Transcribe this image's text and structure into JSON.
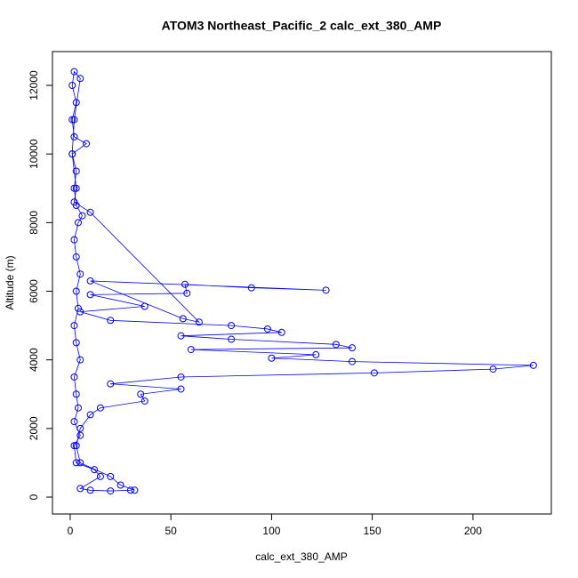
{
  "chart_data": {
    "type": "scatter",
    "title": "ATOM3 Northeast_Pacific_2 calc_ext_380_AMP",
    "x_label": "calc_ext_380_AMP",
    "y_label": "Altitude (m)",
    "color": "#0000ff",
    "connect": true,
    "x": [
      30,
      20,
      10,
      5,
      15,
      12,
      3,
      2,
      5,
      2,
      4,
      3,
      2,
      5,
      3,
      2,
      4,
      3,
      5,
      3,
      2,
      4,
      6,
      3,
      2,
      3,
      1,
      8,
      2,
      1,
      3,
      1,
      2,
      5,
      2,
      1,
      3,
      2,
      10,
      64,
      56,
      10,
      127,
      90,
      57,
      58,
      10,
      37,
      5,
      20,
      80,
      98,
      105,
      55,
      80,
      132,
      140,
      60,
      122,
      100,
      140,
      230,
      210,
      151,
      55,
      20,
      55,
      35,
      37,
      15,
      10,
      5,
      3,
      5,
      20,
      25,
      32
    ],
    "values": [
      200,
      180,
      200,
      250,
      600,
      800,
      1000,
      1500,
      1800,
      2200,
      2600,
      3000,
      3500,
      4000,
      4500,
      5000,
      5500,
      6000,
      6500,
      7000,
      7500,
      8000,
      8200,
      8500,
      9000,
      9500,
      10000,
      10300,
      10500,
      11000,
      11500,
      12000,
      12400,
      12200,
      11000,
      10000,
      9000,
      8600,
      8300,
      5100,
      5200,
      6300,
      6030,
      6100,
      6200,
      5940,
      5900,
      5560,
      5400,
      5150,
      5000,
      4900,
      4800,
      4700,
      4600,
      4450,
      4350,
      4300,
      4150,
      4050,
      3950,
      3840,
      3730,
      3620,
      3500,
      3300,
      3150,
      3000,
      2800,
      2600,
      2400,
      2000,
      1500,
      1000,
      600,
      350,
      200
    ],
    "xlim": [
      -8.8,
      238.9
    ],
    "ylim": [
      -492,
      12985
    ],
    "xticks": [
      0,
      50,
      100,
      150,
      200
    ],
    "yticks": [
      0,
      2000,
      4000,
      6000,
      8000,
      10000,
      12000
    ]
  }
}
